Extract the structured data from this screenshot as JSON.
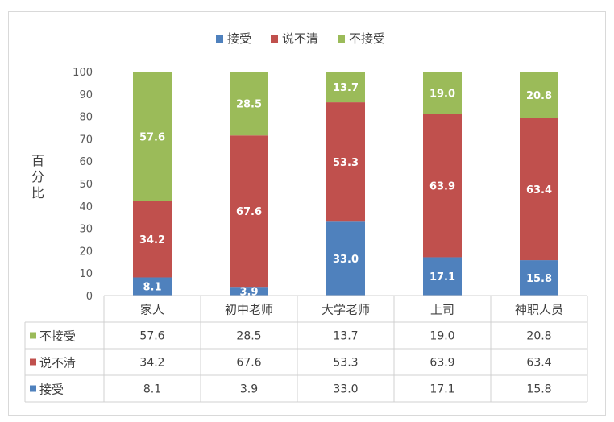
{
  "chart_data": {
    "type": "bar",
    "stacked": true,
    "ylabel": "百分比",
    "ylim": [
      0,
      100
    ],
    "yticks": [
      0,
      10,
      20,
      30,
      40,
      50,
      60,
      70,
      80,
      90,
      100
    ],
    "categories": [
      "家人",
      "初中老师",
      "大学老师",
      "上司",
      "神职人员"
    ],
    "series": [
      {
        "name": "接受",
        "color": "#4f81bd",
        "values": [
          8.1,
          3.9,
          33.0,
          17.1,
          15.8
        ]
      },
      {
        "name": "说不清",
        "color": "#c0504d",
        "values": [
          34.2,
          67.6,
          53.3,
          63.9,
          63.4
        ]
      },
      {
        "name": "不接受",
        "color": "#9bbb59",
        "values": [
          57.6,
          28.5,
          13.7,
          19.0,
          20.8
        ]
      }
    ],
    "legend_position": "top",
    "data_table": true,
    "table_row_order": [
      "不接受",
      "说不清",
      "接受"
    ]
  }
}
